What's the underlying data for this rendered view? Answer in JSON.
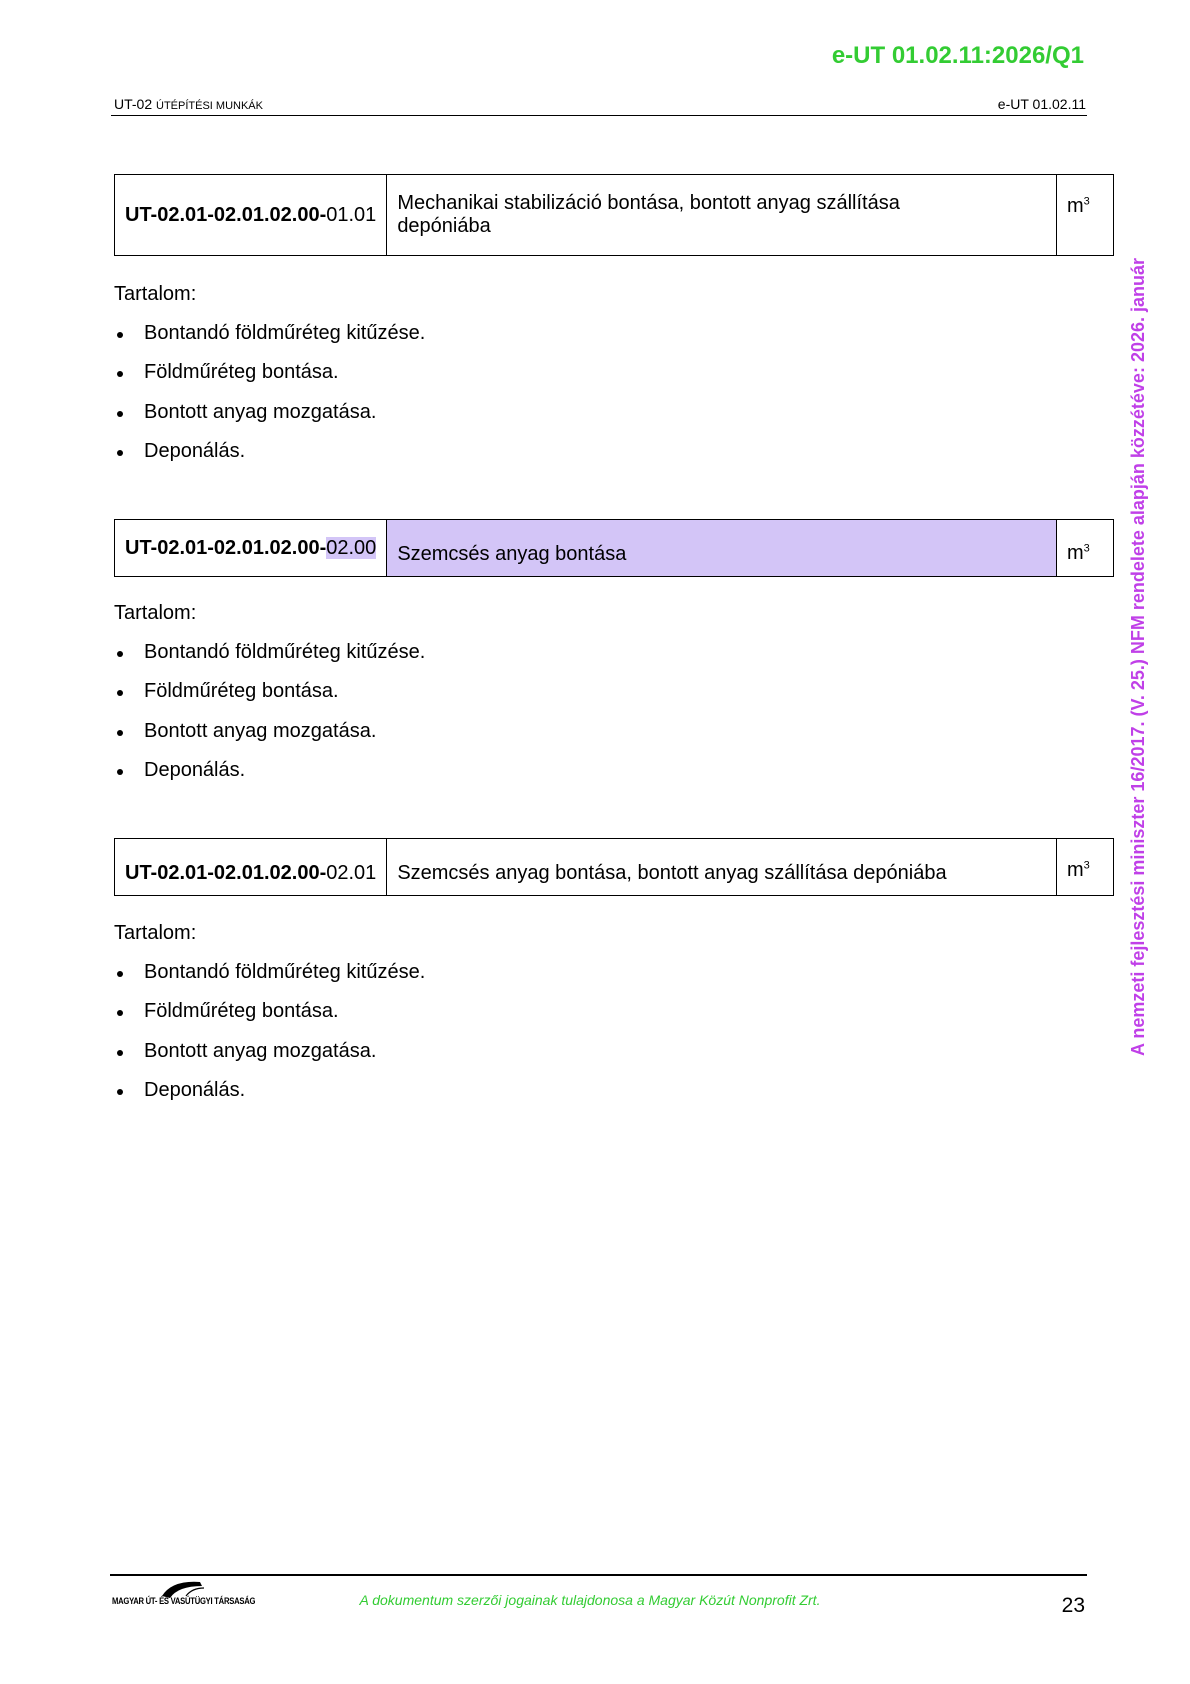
{
  "header": {
    "doc_id": "e-UT 01.02.11:2026/Q1",
    "section_prefix": "UT-02 ",
    "section_title": "ÚTÉPÍTÉSI MUNKÁK",
    "doc_short": "e-UT 01.02.11"
  },
  "items": [
    {
      "code_bold": "UT-02.01-02.01.02.00-",
      "code_suffix": "01.01",
      "description": "Mechanikai stabilizáció bontása, bontott anyag szállítása depóniába",
      "unit": "m",
      "unit_exp": "3",
      "content_label": "Tartalom:",
      "bullets": [
        "Bontandó földműréteg kitűzése.",
        "Földműréteg bontása.",
        "Bontott anyag mozgatása.",
        "Deponálás."
      ]
    },
    {
      "code_bold": "UT-02.01-02.01.02.00-",
      "code_suffix": "02.00",
      "description": "Szemcsés anyag bontása",
      "unit": "m",
      "unit_exp": "3",
      "highlighted": true,
      "content_label": "Tartalom:",
      "bullets": [
        "Bontandó földműréteg kitűzése.",
        "Földműréteg bontása.",
        "Bontott anyag mozgatása.",
        "Deponálás."
      ]
    },
    {
      "code_bold": "UT-02.01-02.01.02.00-",
      "code_suffix": "02.01",
      "description": "Szemcsés anyag bontása, bontott anyag szállítása depóniába",
      "unit": "m",
      "unit_exp": "3",
      "content_label": "Tartalom:",
      "bullets": [
        "Bontandó földműréteg kitűzése.",
        "Földműréteg bontása.",
        "Bontott anyag mozgatása.",
        "Deponálás."
      ]
    }
  ],
  "footer": {
    "logo_text": "MAGYAR ÚT- ÉS VASÚTÜGYI TÁRSASÁG",
    "copyright": "A dokumentum szerzői jogainak tulajdonosa a Magyar Közút Nonprofit Zrt.",
    "page_number": "23"
  },
  "watermark": "A nemzeti fejlesztési miniszter 16/2017. (V. 25.) NFM rendelete alapján közzétéve: 2026. január",
  "colors": {
    "accent_green": "#33cc33",
    "watermark_purple": "#c040e8",
    "highlight": "#d3c5f7"
  }
}
